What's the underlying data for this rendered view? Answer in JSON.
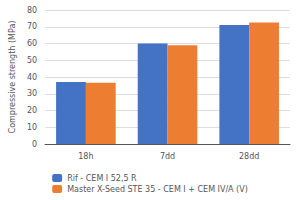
{
  "chart_data": {
    "type": "bar",
    "categories": [
      "18h",
      "7dd",
      "28dd"
    ],
    "series": [
      {
        "name": "Rif - CEM I 52,5 R",
        "color": "#4472c4",
        "values": [
          37,
          60,
          71
        ]
      },
      {
        "name": "Master X-Seed STE 35 - CEM I + CEM IV/A (V)",
        "color": "#ed7d31",
        "values": [
          36.5,
          59,
          72.5
        ]
      }
    ],
    "ylabel": "Compressive strength (MPa)",
    "ylim": [
      0,
      80
    ],
    "yticks": [
      0,
      10,
      20,
      30,
      40,
      50,
      60,
      70,
      80
    ],
    "grid": true,
    "legend": "bottom"
  }
}
